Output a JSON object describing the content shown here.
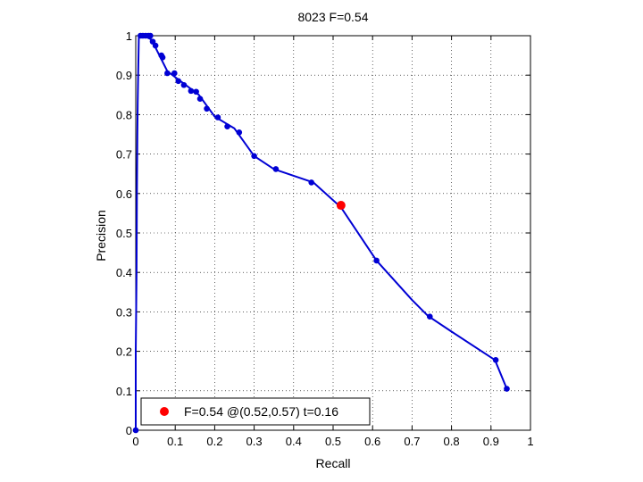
{
  "chart_data": {
    "type": "line",
    "title": "8023 F=0.54",
    "xlabel": "Recall",
    "ylabel": "Precision",
    "xlim": [
      0,
      1
    ],
    "ylim": [
      0,
      1
    ],
    "xticks": [
      0,
      0.1,
      0.2,
      0.3,
      0.4,
      0.5,
      0.6,
      0.7,
      0.8,
      0.9,
      1
    ],
    "yticks": [
      0,
      0.1,
      0.2,
      0.3,
      0.4,
      0.5,
      0.6,
      0.7,
      0.8,
      0.9,
      1
    ],
    "xtick_labels": [
      "0",
      "0.1",
      "0.2",
      "0.3",
      "0.4",
      "0.5",
      "0.6",
      "0.7",
      "0.8",
      "0.9",
      "1"
    ],
    "ytick_labels": [
      "0",
      "0.1",
      "0.2",
      "0.3",
      "0.4",
      "0.5",
      "0.6",
      "0.7",
      "0.8",
      "0.9",
      "1"
    ],
    "grid": true,
    "line_color": "#0000d4",
    "line_x": [
      0,
      0,
      0.002,
      0.003,
      0.004,
      0.005,
      0.006,
      0.008,
      0.02,
      0.04,
      0.06,
      0.08,
      0.1,
      0.12,
      0.14,
      0.16,
      0.2,
      0.25,
      0.3,
      0.35,
      0.4,
      0.45,
      0.52,
      0.61,
      0.7,
      0.74,
      0.8,
      0.91,
      0.94
    ],
    "line_y": [
      0,
      0.2,
      0.4,
      0.6,
      0.75,
      0.83,
      0.9,
      1.0,
      1.0,
      0.99,
      0.95,
      0.91,
      0.895,
      0.88,
      0.865,
      0.85,
      0.795,
      0.765,
      0.695,
      0.662,
      0.645,
      0.628,
      0.565,
      0.43,
      0.33,
      0.29,
      0.25,
      0.178,
      0.105
    ],
    "markers_x": [
      0,
      0.012,
      0.018,
      0.025,
      0.032,
      0.037,
      0.043,
      0.05,
      0.065,
      0.068,
      0.08,
      0.098,
      0.108,
      0.122,
      0.14,
      0.153,
      0.163,
      0.18,
      0.208,
      0.232,
      0.262,
      0.3,
      0.355,
      0.445,
      0.61,
      0.745,
      0.912,
      0.94
    ],
    "markers_y": [
      0,
      1.0,
      1.0,
      1.0,
      1.0,
      1.0,
      0.985,
      0.975,
      0.95,
      0.945,
      0.905,
      0.905,
      0.885,
      0.875,
      0.86,
      0.858,
      0.84,
      0.815,
      0.793,
      0.77,
      0.755,
      0.695,
      0.662,
      0.628,
      0.43,
      0.288,
      0.178,
      0.105
    ],
    "highlight": {
      "x": 0.52,
      "y": 0.57,
      "color": "#ff0000"
    },
    "legend": {
      "label": "F=0.54 @(0.52,0.57) t=0.16",
      "placement": "bottom-left"
    }
  }
}
